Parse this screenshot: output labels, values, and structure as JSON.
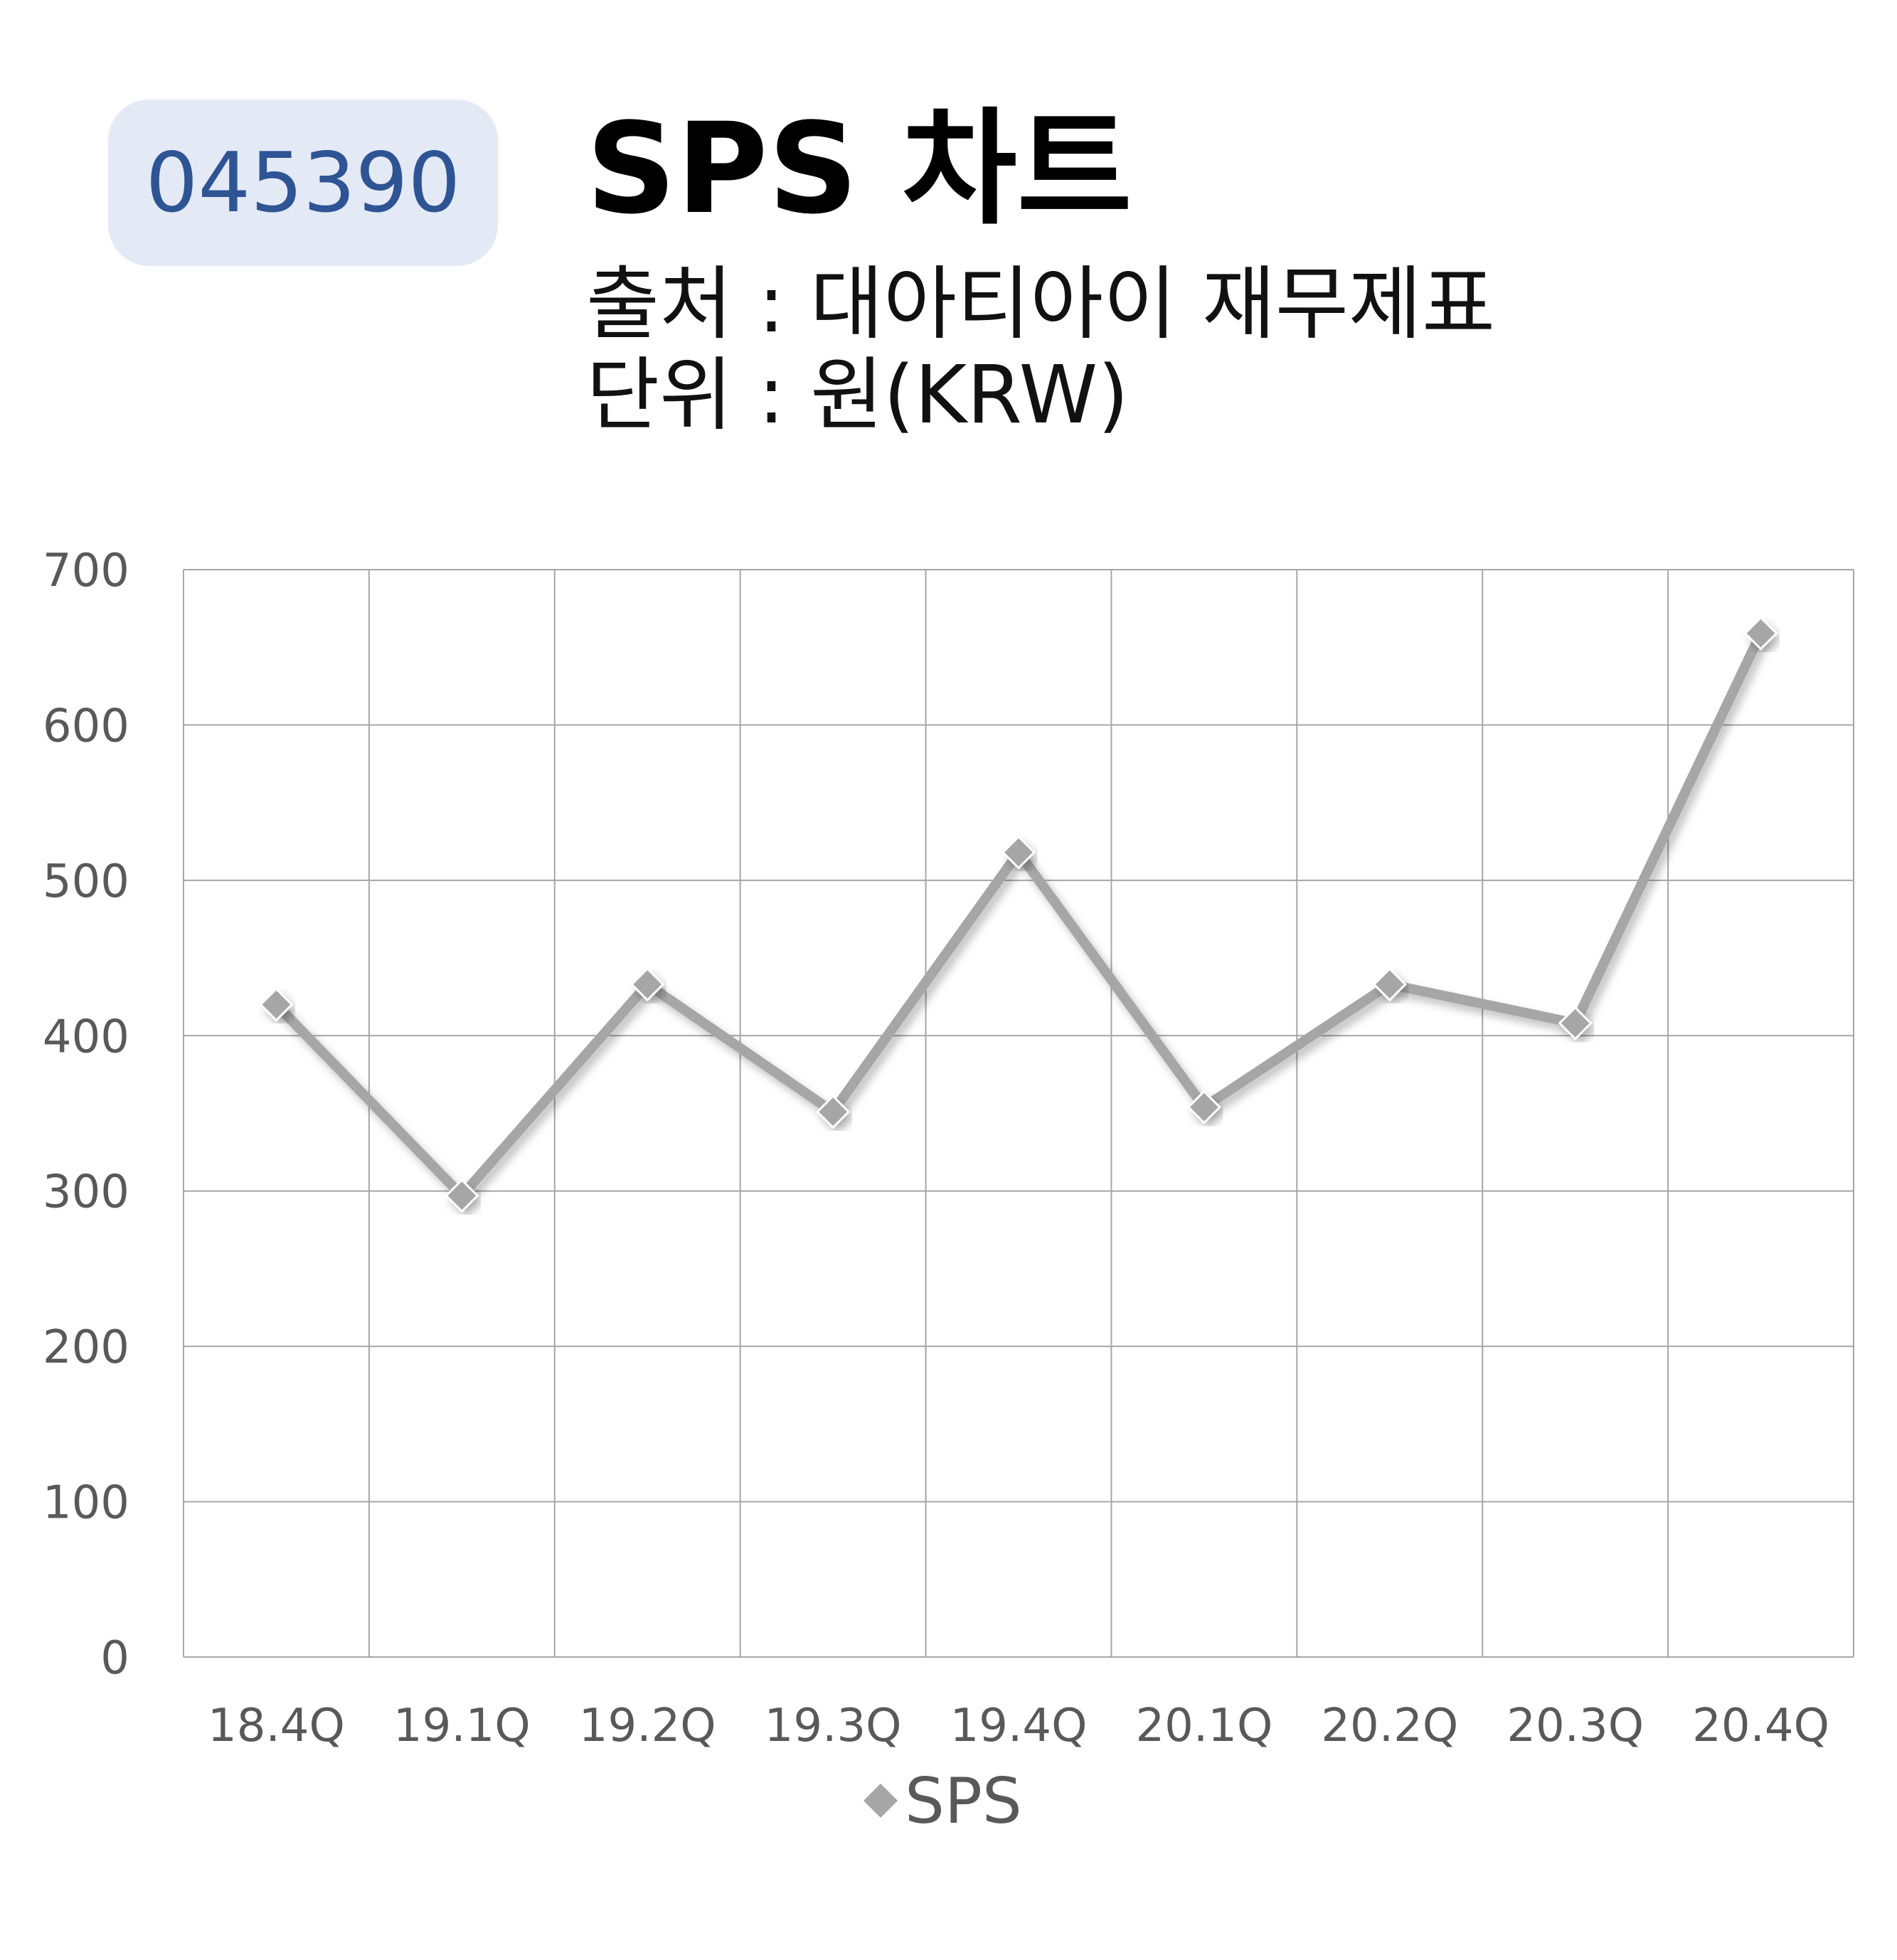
{
  "header": {
    "ticker": "045390",
    "title": "SPS 차트",
    "source": "출처 : 대아티아이 재무제표",
    "unit": "단위 : 원(KRW)"
  },
  "chart_data": {
    "type": "line",
    "categories": [
      "18.4Q",
      "19.1Q",
      "19.2Q",
      "19.3Q",
      "19.4Q",
      "20.1Q",
      "20.2Q",
      "20.3Q",
      "20.4Q"
    ],
    "series": [
      {
        "name": "SPS",
        "values": [
          420,
          297,
          433,
          351,
          518,
          354,
          433,
          408,
          659
        ],
        "color": "#a6a6a6"
      }
    ],
    "ylim": [
      0,
      700
    ],
    "yticks": [
      0,
      100,
      200,
      300,
      400,
      500,
      600,
      700
    ],
    "grid": true,
    "legend": "bottom",
    "gridColor": "#a6a6a6",
    "tickColor": "#595959"
  }
}
